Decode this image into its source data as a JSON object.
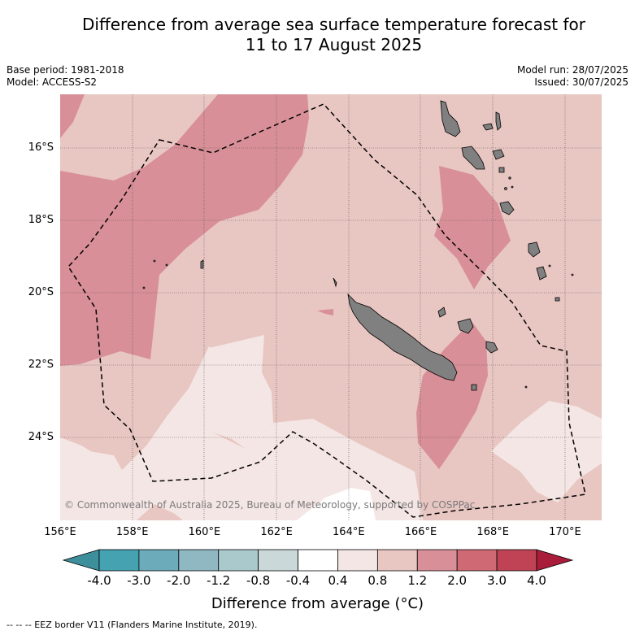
{
  "title": "Difference from average sea surface temperature forecast for\n11 to 17 August 2025",
  "title_line1": "Difference from average sea surface temperature forecast for",
  "title_line2": "11 to 17 August 2025",
  "meta": {
    "base_period": "Base period: 1981-2018",
    "model": "Model: ACCESS-S2",
    "model_run": "Model run: 28/07/2025",
    "issued": "Issued: 30/07/2025"
  },
  "map": {
    "lon_ticks": [
      "156°E",
      "158°E",
      "160°E",
      "162°E",
      "164°E",
      "166°E",
      "168°E",
      "170°E"
    ],
    "lat_ticks": [
      "16°S",
      "18°S",
      "20°S",
      "22°S",
      "24°S"
    ],
    "land_color": "#808080",
    "copyright": "© Commonwealth of Australia 2025, Bureau of Meteorology, supported by COSPPac"
  },
  "colorbar": {
    "labels": [
      "-4.0",
      "-3.0",
      "-2.0",
      "-1.2",
      "-0.8",
      "-0.4",
      "0.4",
      "0.8",
      "1.2",
      "2.0",
      "3.0",
      "4.0"
    ],
    "colors": [
      "#3d8f9c",
      "#45a2b1",
      "#6cabba",
      "#8fb8c3",
      "#aac9cc",
      "#cbd8d9",
      "#ffffff",
      "#f4e6e4",
      "#e8c6c2",
      "#d88f97",
      "#cf6a75",
      "#bf4355",
      "#a91c3a"
    ],
    "title": "Difference from average (",
    "unit_symbol": "°C",
    "title_suffix": ")"
  },
  "footer": "--  --  -- EEZ border V11 (Flanders Marine Institute, 2019)."
}
